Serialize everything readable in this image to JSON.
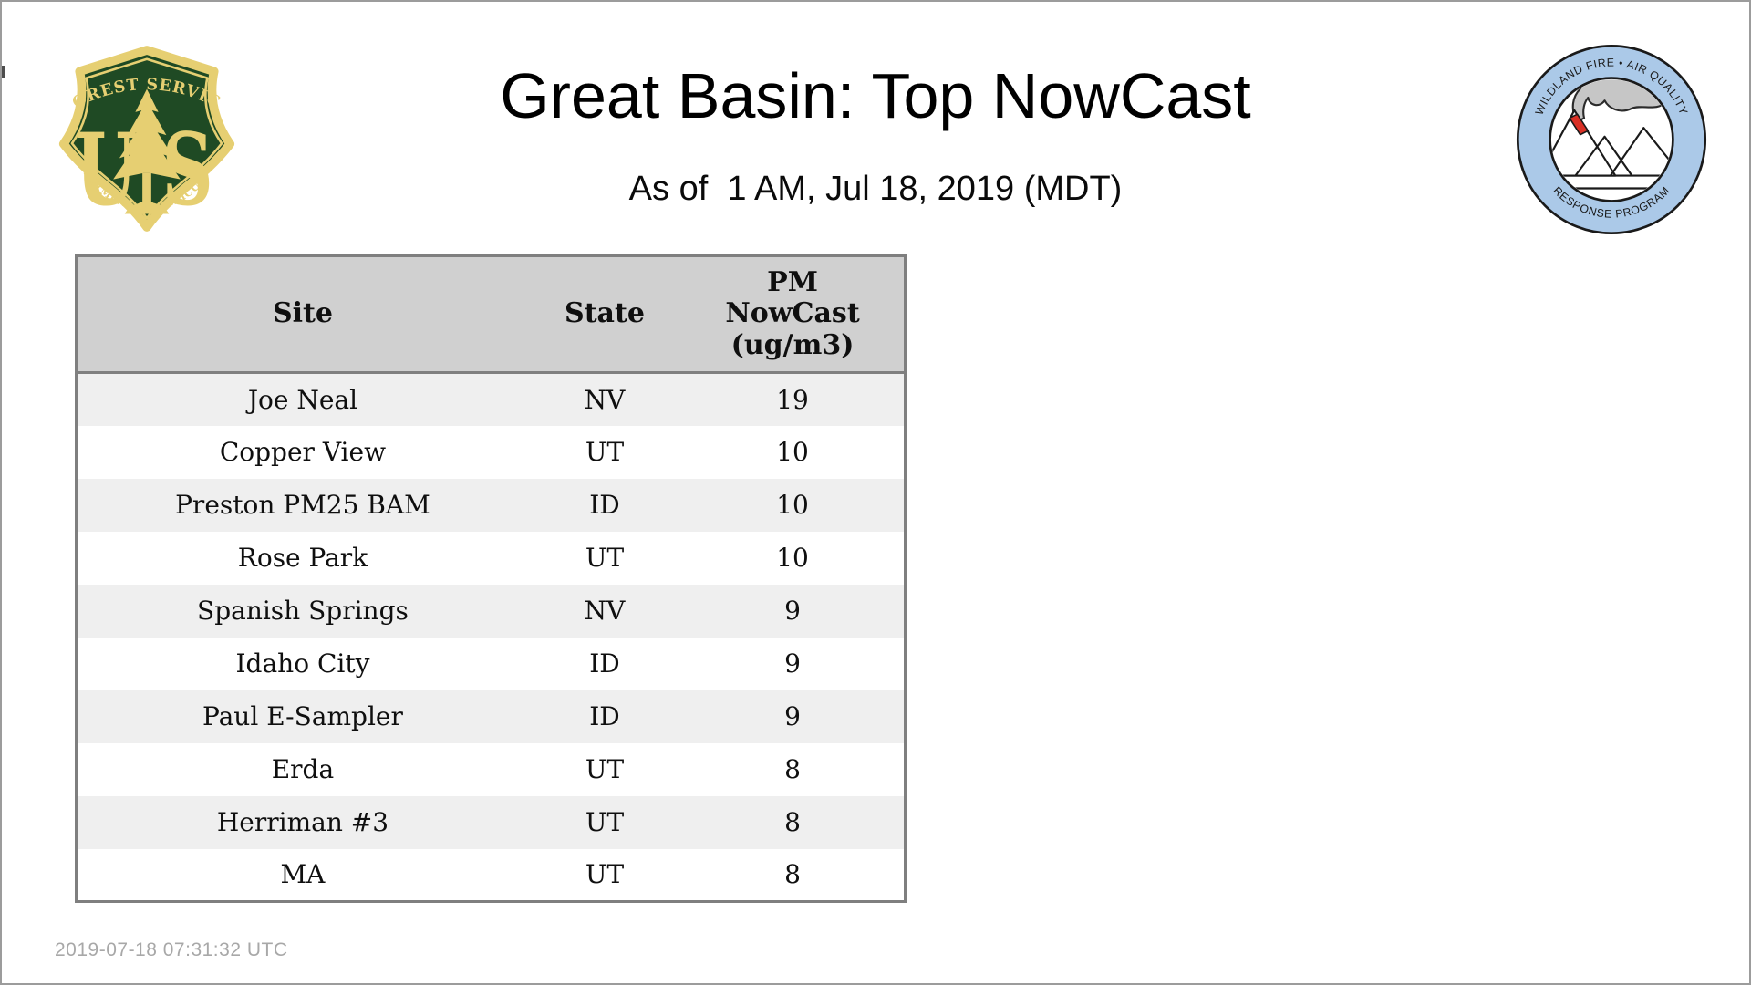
{
  "header": {
    "title": "Great Basin: Top NowCast",
    "subtitle": "As of  1 AM, Jul 18, 2019 (MDT)"
  },
  "logos": {
    "forest_service": {
      "arc_top": "FOREST SERVICE",
      "letter_u": "U",
      "letter_s": "S",
      "arc_bottom": "DEPARTMENT OF AGRICULTURE",
      "colors": {
        "shield_green": "#1f4a24",
        "shield_gold": "#e6cf72"
      }
    },
    "air_quality_program": {
      "arc_top": "WILDLAND FIRE • AIR QUALITY",
      "arc_bottom": "RESPONSE PROGRAM",
      "colors": {
        "ring_blue": "#abc9e8",
        "smoke_gray": "#c6c6c6",
        "fire_red": "#d93025"
      }
    }
  },
  "table": {
    "columns": [
      "Site",
      "State",
      "PM\nNowCast\n(ug/m3)"
    ],
    "rows": [
      {
        "site": "Joe Neal",
        "state": "NV",
        "value": 19
      },
      {
        "site": "Copper View",
        "state": "UT",
        "value": 10
      },
      {
        "site": "Preston PM25 BAM",
        "state": "ID",
        "value": 10
      },
      {
        "site": "Rose Park",
        "state": "UT",
        "value": 10
      },
      {
        "site": "Spanish Springs",
        "state": "NV",
        "value": 9
      },
      {
        "site": "Idaho City",
        "state": "ID",
        "value": 9
      },
      {
        "site": "Paul E-Sampler",
        "state": "ID",
        "value": 9
      },
      {
        "site": "Erda",
        "state": "UT",
        "value": 8
      },
      {
        "site": "Herriman #3",
        "state": "UT",
        "value": 8
      },
      {
        "site": "MA",
        "state": "UT",
        "value": 8
      }
    ],
    "colors": {
      "header_bg": "#d0d0d0",
      "stripe_bg": "#efefef",
      "border": "#7f7f7f"
    }
  },
  "footer": {
    "timestamp": "2019-07-18 07:31:32 UTC"
  }
}
